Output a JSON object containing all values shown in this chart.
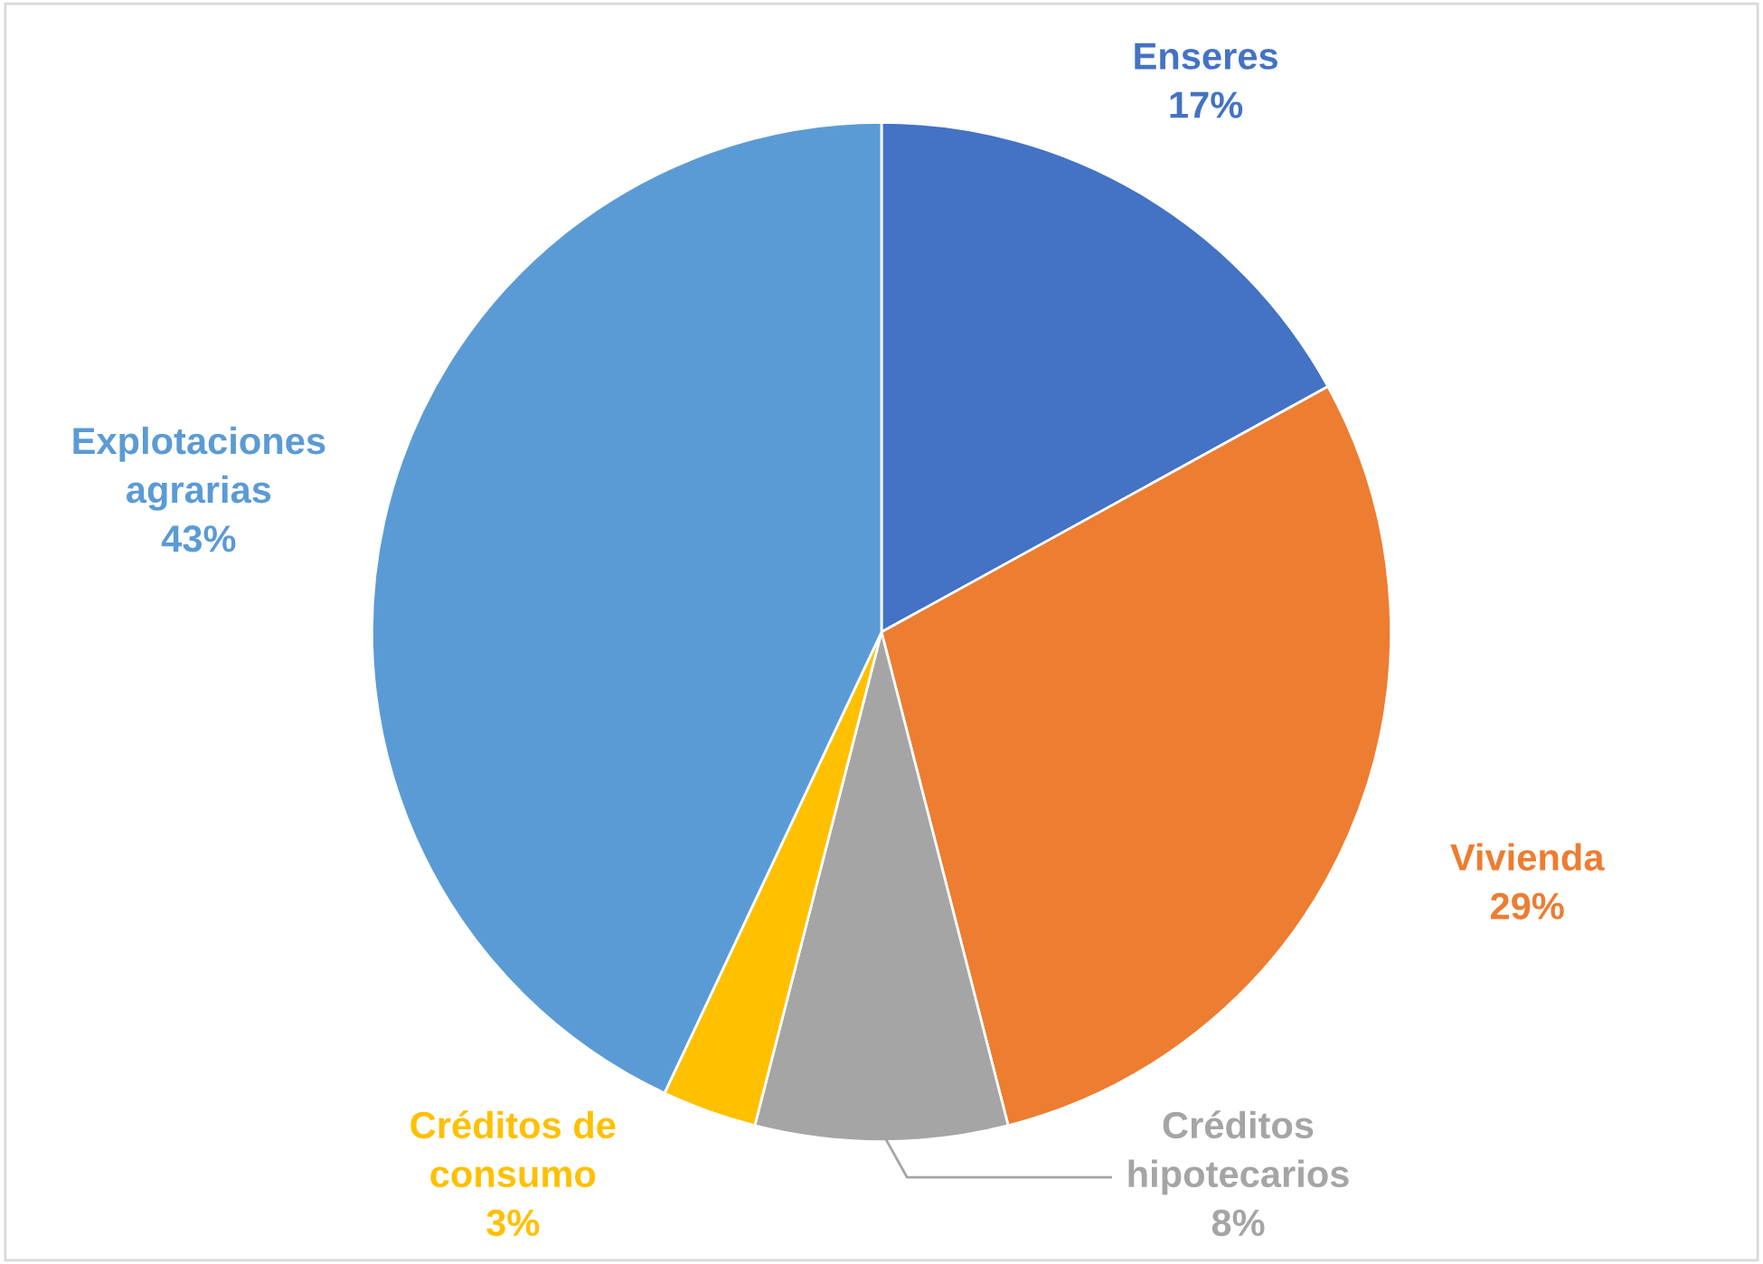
{
  "chart_data": {
    "type": "pie",
    "categories": [
      "Enseres",
      "Vivienda",
      "Créditos hipotecarios",
      "Créditos de consumo",
      "Explotaciones agrarias"
    ],
    "values": [
      17,
      29,
      8,
      3,
      43
    ],
    "colors": [
      "#4472c4",
      "#ed7d31",
      "#a5a5a5",
      "#ffc000",
      "#5b9bd5"
    ],
    "value_labels": [
      "17%",
      "29%",
      "8%",
      "3%",
      "43%"
    ],
    "legend": false
  }
}
